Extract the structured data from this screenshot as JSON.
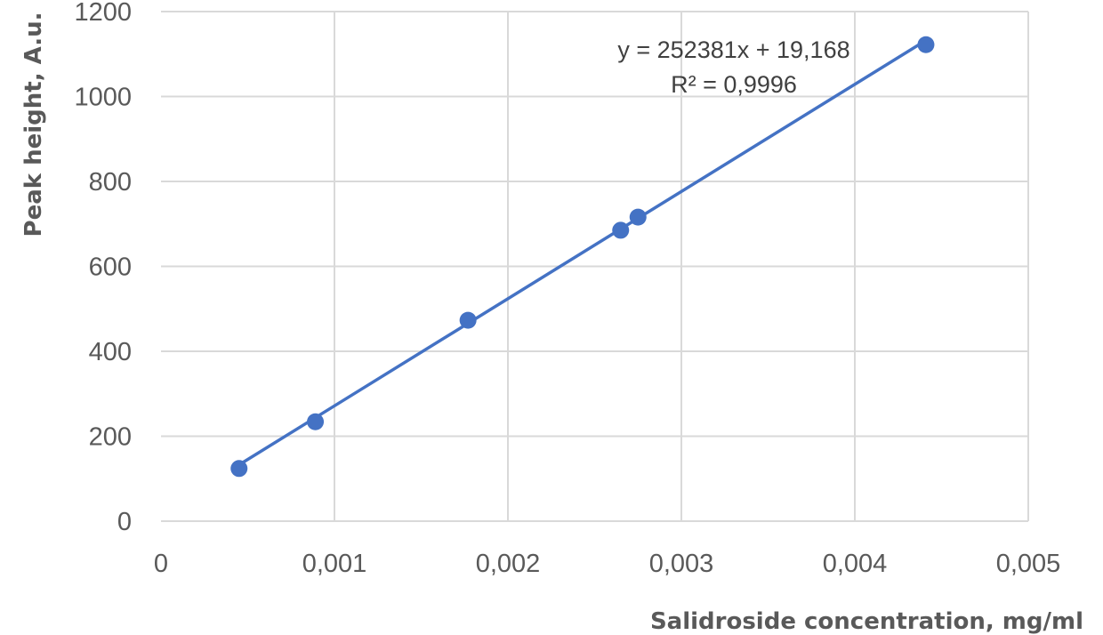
{
  "chart_data": {
    "type": "scatter",
    "title": "",
    "xlabel": "Salidroside concentration, mg/ml",
    "ylabel": "Peak height, A.u.",
    "xlim": [
      0,
      0.005
    ],
    "ylim": [
      0,
      1200
    ],
    "x_ticks": [
      0,
      0.001,
      0.002,
      0.003,
      0.004,
      0.005
    ],
    "x_tick_labels": [
      "0",
      "0,001",
      "0,002",
      "0,003",
      "0,004",
      "0,005"
    ],
    "y_ticks": [
      0,
      200,
      400,
      600,
      800,
      1000,
      1200
    ],
    "y_tick_labels": [
      "0",
      "200",
      "400",
      "600",
      "800",
      "1000",
      "1200"
    ],
    "grid": true,
    "legend": "none",
    "series": [
      {
        "color": "#4472c4",
        "points": [
          {
            "x": 0.00045,
            "y": 124
          },
          {
            "x": 0.00089,
            "y": 234
          },
          {
            "x": 0.00177,
            "y": 473
          },
          {
            "x": 0.00265,
            "y": 685
          },
          {
            "x": 0.00275,
            "y": 716
          },
          {
            "x": 0.00441,
            "y": 1122
          }
        ]
      }
    ],
    "trendline": {
      "type": "linear",
      "slope": 252381,
      "intercept": 19.168,
      "x_range": [
        0.00045,
        0.00441
      ],
      "color": "#4472c4",
      "equation_text": "y = 252381x  + 19,168",
      "r2_text": "R² = 0,9996"
    }
  }
}
